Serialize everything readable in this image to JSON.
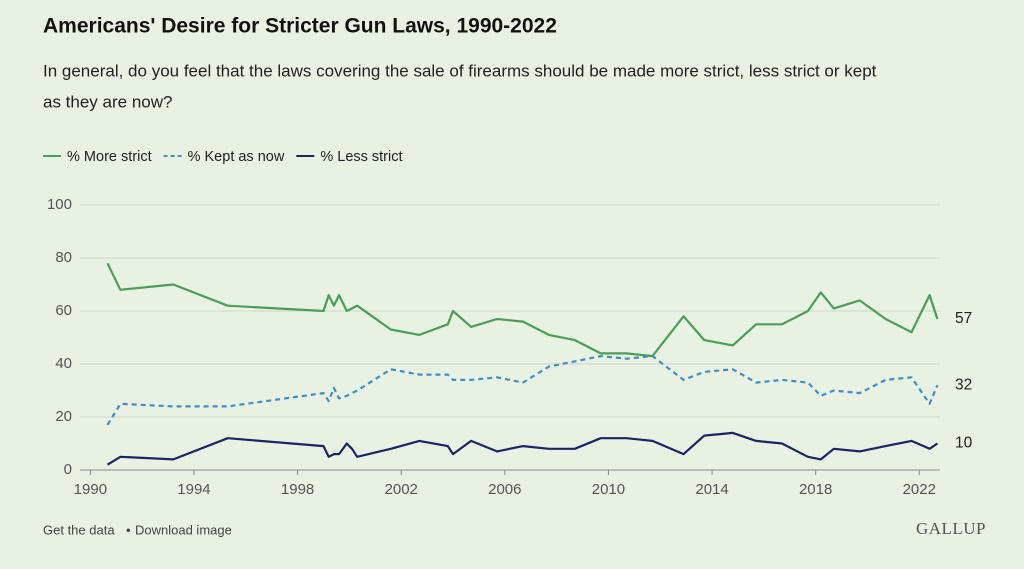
{
  "chart_data": {
    "type": "line",
    "title": "Americans' Desire for Stricter Gun Laws, 1990-2022",
    "subtitle_lines": [
      "In general, do you feel that the laws covering the sale of firearms should be made more strict, less strict or kept",
      "as they are now?"
    ],
    "x": [
      1990.66,
      1991.16,
      1993.2,
      1995.3,
      1999.0,
      1999.2,
      1999.4,
      1999.6,
      1999.9,
      2000.1,
      2000.3,
      2001.6,
      2002.7,
      2003.8,
      2004.0,
      2004.7,
      2005.7,
      2006.7,
      2007.7,
      2008.7,
      2009.7,
      2010.7,
      2011.7,
      2012.9,
      2013.7,
      2014.8,
      2015.7,
      2016.7,
      2017.7,
      2018.2,
      2018.7,
      2019.7,
      2020.7,
      2021.7,
      2022.4,
      2022.7
    ],
    "series": [
      {
        "name": "% More strict",
        "color": "#4a9e57",
        "dashed": false,
        "values": [
          78,
          68,
          70,
          62,
          60,
          66,
          62,
          66,
          60,
          61,
          62,
          53,
          51,
          55,
          60,
          54,
          57,
          56,
          51,
          49,
          44,
          44,
          43,
          58,
          49,
          47,
          55,
          55,
          60,
          67,
          61,
          64,
          57,
          52,
          66,
          57
        ]
      },
      {
        "name": "% Kept as now",
        "color": "#3d8fc9",
        "dashed": true,
        "values": [
          17,
          25,
          24,
          24,
          29,
          26,
          31,
          27,
          28,
          29,
          30,
          38,
          36,
          36,
          34,
          34,
          35,
          33,
          39,
          41,
          43,
          42,
          43,
          34,
          37,
          38,
          33,
          34,
          33,
          28,
          30,
          29,
          34,
          35,
          25,
          32
        ]
      },
      {
        "name": "% Less strict",
        "color": "#1b2466",
        "dashed": false,
        "values": [
          2,
          5,
          4,
          12,
          9,
          5,
          6,
          6,
          10,
          8,
          5,
          8,
          11,
          9,
          6,
          11,
          7,
          9,
          8,
          8,
          12,
          12,
          11,
          6,
          13,
          14,
          11,
          10,
          5,
          4,
          8,
          7,
          9,
          11,
          8,
          10
        ]
      }
    ],
    "xlim": [
      1989.6,
      2022.8
    ],
    "xticks": [
      1990,
      1994,
      1998,
      2002,
      2006,
      2010,
      2014,
      2018,
      2022
    ],
    "ylim": [
      0,
      100
    ],
    "yticks": [
      0,
      20,
      40,
      60,
      80,
      100
    ],
    "grid": true,
    "legend": "top-left",
    "footer": {
      "get_data": "Get the data",
      "separator": "•",
      "download": "Download image",
      "brand": "GALLUP"
    }
  }
}
